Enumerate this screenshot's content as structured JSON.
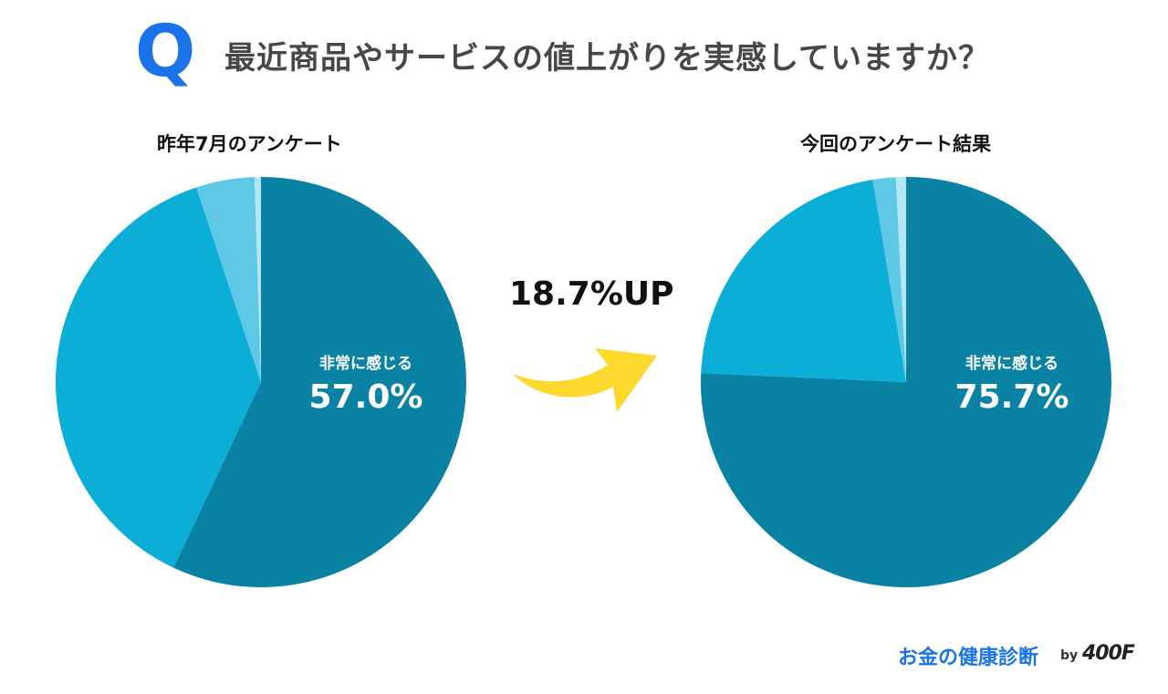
{
  "header": {
    "q_mark": "Q",
    "question": "最近商品やサービスの値上がりを実感していますか？"
  },
  "comparison": {
    "diff_label": "18.7%UP",
    "arrow_color": "#fcd92c"
  },
  "chart_data": [
    {
      "type": "pie",
      "title": "昨年7月のアンケート",
      "start": "12 o'clock",
      "direction": "clockwise",
      "slices": [
        {
          "label": "非常に感じる",
          "value": 57.0,
          "value_label": "57.0%",
          "color": "#0a82a3"
        },
        {
          "label": "",
          "value": 37.9,
          "color": "#0aaed6"
        },
        {
          "label": "",
          "value": 4.6,
          "color": "#5ec8e5"
        },
        {
          "label": "",
          "value": 0.5,
          "color": "#b4e6f3"
        }
      ]
    },
    {
      "type": "pie",
      "title": "今回のアンケート結果",
      "start": "12 o'clock",
      "direction": "clockwise",
      "slices": [
        {
          "label": "非常に感じる",
          "value": 75.7,
          "value_label": "75.7%",
          "color": "#0a82a3"
        },
        {
          "label": "",
          "value": 21.7,
          "color": "#0aaed6"
        },
        {
          "label": "",
          "value": 1.8,
          "color": "#5ec8e5"
        },
        {
          "label": "",
          "value": 0.8,
          "color": "#b4e6f3"
        }
      ]
    }
  ],
  "footer": {
    "brand": "お金の健康診断",
    "by": "by",
    "logo": "400F"
  }
}
